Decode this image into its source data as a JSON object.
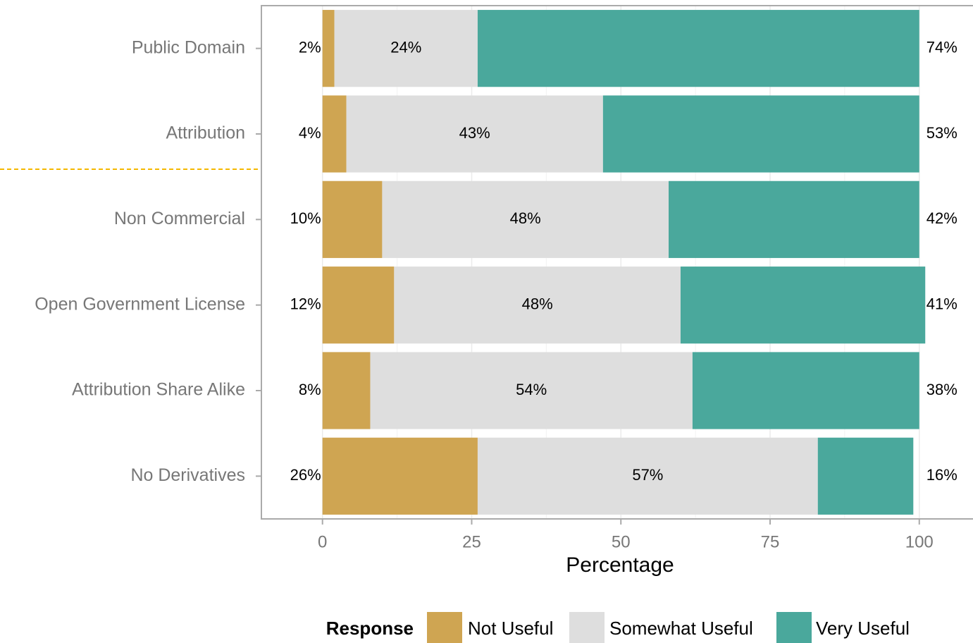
{
  "chart_data": {
    "type": "bar",
    "orientation": "horizontal",
    "stacked": true,
    "categories": [
      "Public Domain",
      "Attribution",
      "Non Commercial",
      "Open Government License",
      "Attribution Share Alike",
      "No Derivatives"
    ],
    "series": [
      {
        "name": "Not Useful",
        "color": "#cfa552",
        "values": [
          2,
          4,
          10,
          12,
          8,
          26
        ],
        "value_labels": [
          "2%",
          "4%",
          "10%",
          "12%",
          "8%",
          "26%"
        ]
      },
      {
        "name": "Somewhat Useful",
        "color": "#dedede",
        "values": [
          24,
          43,
          48,
          48,
          54,
          57
        ],
        "value_labels": [
          "24%",
          "43%",
          "48%",
          "48%",
          "54%",
          "57%"
        ]
      },
      {
        "name": "Very Useful",
        "color": "#4aa89c",
        "values": [
          74,
          53,
          42,
          41,
          38,
          16
        ],
        "value_labels": [
          "74%",
          "53%",
          "42%",
          "41%",
          "38%",
          "16%"
        ]
      }
    ],
    "xlabel": "Percentage",
    "xlim": [
      -10,
      109
    ],
    "xticks": [
      0,
      25,
      50,
      75,
      100
    ],
    "legend_title": "Response",
    "legend": "bottom",
    "grid": true
  }
}
